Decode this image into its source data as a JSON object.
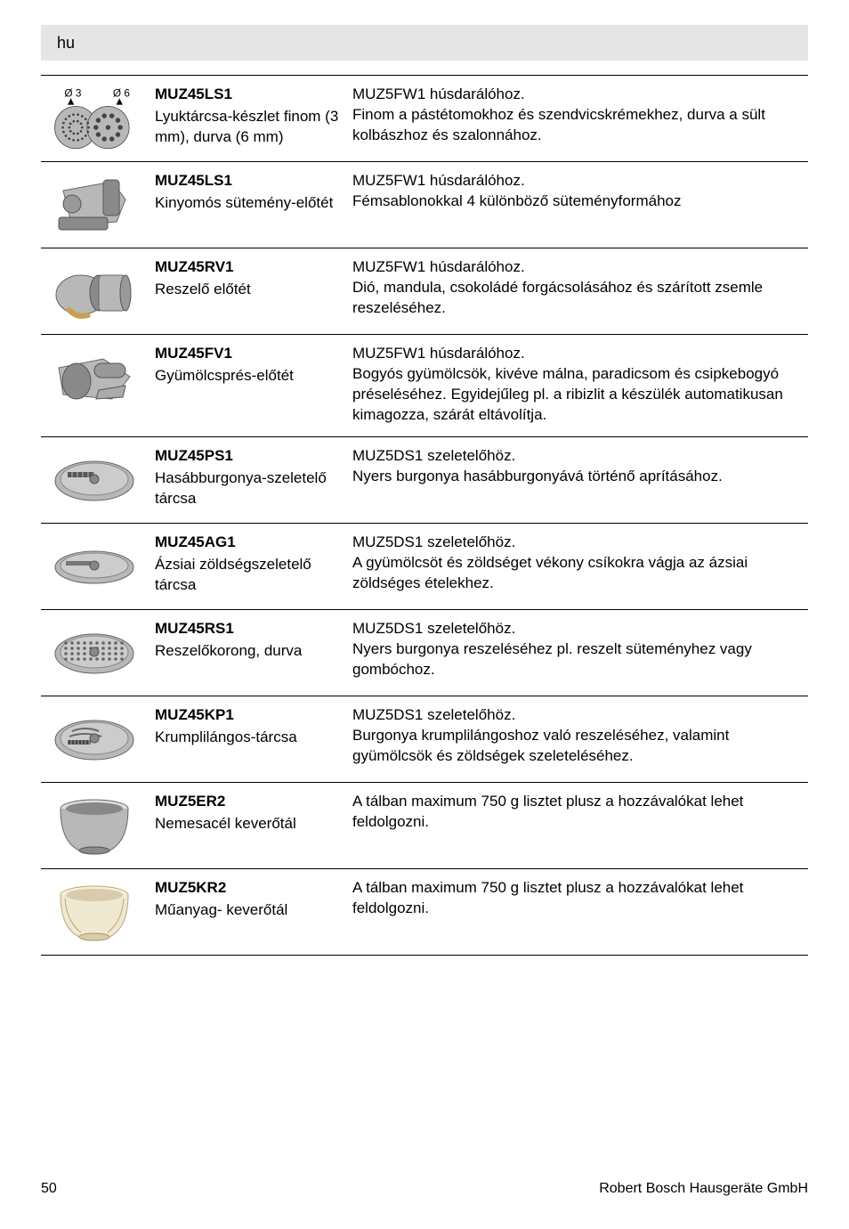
{
  "header": {
    "lang": "hu"
  },
  "footer": {
    "page": "50",
    "company": "Robert Bosch Hausgeräte GmbH"
  },
  "rows": [
    {
      "icon": "discs-3-6",
      "model": "MUZ45LS1",
      "name": "Lyuktárcsa-készlet finom (3 mm), durva (6 mm)",
      "desc": "MUZ5FW1 húsdarálóhoz.\nFinom a pástétomokhoz és szendvicskrémekhez, durva a sült kolbászhoz és szalonnához."
    },
    {
      "icon": "spritz",
      "model": "MUZ45LS1",
      "name": "Kinyomós sütemény-előtét",
      "desc": "MUZ5FW1 húsdarálóhoz.\nFémsablonokkal 4 különböző süteményformához"
    },
    {
      "icon": "grater-drum",
      "model": "MUZ45RV1",
      "name": "Reszelő előtét",
      "desc": "MUZ5FW1 húsdarálóhoz.\nDió, mandula, csokoládé forgácsolásához és szárított zsemle reszeléséhez."
    },
    {
      "icon": "fruit-press",
      "model": "MUZ45FV1",
      "name": "Gyümölcsprés-előtét",
      "desc": "MUZ5FW1 húsdarálóhoz.\nBogyós gyümölcsök, kivéve málna, paradicsom és csipkebogyó préseléséhez. Egyidejűleg pl. a ribizlit a készülék automatikusan kimagozza, szárát eltávolítja."
    },
    {
      "icon": "chip-disc",
      "model": "MUZ45PS1",
      "name": "Hasábburgonya-szeletelő tárcsa",
      "desc": "MUZ5DS1 szeletelőhöz.\nNyers burgonya hasábburgonyává történő aprításához."
    },
    {
      "icon": "asian-disc",
      "model": "MUZ45AG1",
      "name": "Ázsiai zöldségszeletelő tárcsa",
      "desc": "MUZ5DS1 szeletelőhöz.\nA gyümölcsöt és zöldséget vékony csíkokra vágja az ázsiai zöldséges ételekhez."
    },
    {
      "icon": "coarse-disc",
      "model": "MUZ45RS1",
      "name": "Reszelőkorong, durva",
      "desc": "MUZ5DS1 szeletelőhöz.\nNyers burgonya reszeléséhez pl. reszelt süteményhez vagy gombóchoz."
    },
    {
      "icon": "potato-disc",
      "model": "MUZ45KP1",
      "name": "Krumplilángos-tárcsa",
      "desc": "MUZ5DS1 szeletelőhöz.\nBurgonya krumplilángoshoz való reszeléséhez, valamint gyümölcsök és zöldségek szeleteléséhez."
    },
    {
      "icon": "steel-bowl",
      "model": "MUZ5ER2",
      "name": "Nemesacél keverőtál",
      "desc": "A tálban maximum 750 g lisztet plusz a hozzávalókat lehet feldolgozni."
    },
    {
      "icon": "plastic-bowl",
      "model": "MUZ5KR2",
      "name": "Műanyag- keverőtál",
      "desc": "A tálban maximum 750 g lisztet plusz a hozzávalókat lehet feldolgozni."
    }
  ],
  "colors": {
    "header_bg": "#e5e5e5",
    "text": "#000000",
    "border": "#000000",
    "steel": "#b8b8b8",
    "steel_dark": "#8a8a8a",
    "cream": "#f0e8d0",
    "cream_dark": "#d8ccac"
  }
}
